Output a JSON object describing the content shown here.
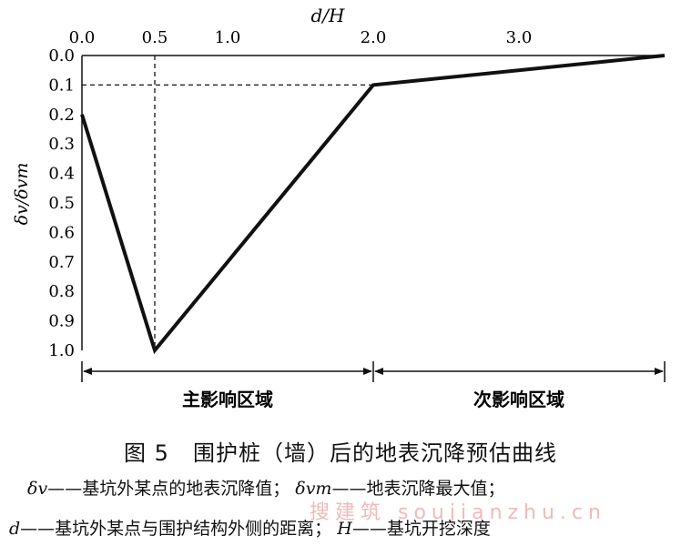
{
  "chart_data": {
    "type": "line",
    "x_axis": {
      "label": "d/H",
      "position": "top",
      "range": [
        0,
        4.0
      ],
      "tick_values": [
        0,
        0.5,
        1.0,
        2.0,
        3.0
      ],
      "tick_labels": [
        "0.0",
        "0.5",
        "1.0",
        "2.0",
        "3.0"
      ]
    },
    "y_axis": {
      "label": "δv/δvm",
      "inverted": true,
      "range": [
        0,
        1.0
      ],
      "tick_values": [
        0,
        0.1,
        0.2,
        0.3,
        0.4,
        0.5,
        0.6,
        0.7,
        0.8,
        0.9,
        1.0
      ],
      "tick_labels": [
        "0.0",
        "0.1",
        "0.2",
        "0.3",
        "0.4",
        "0.5",
        "0.6",
        "0.7",
        "0.8",
        "0.9",
        "1.0"
      ]
    },
    "series": [
      {
        "x": [
          0,
          0.5,
          2.0,
          4.0
        ],
        "y": [
          0.2,
          1.0,
          0.1,
          0.0
        ]
      }
    ],
    "guides": [
      {
        "type": "vertical",
        "x": 0.5,
        "style": "dashed"
      },
      {
        "type": "horizontal",
        "y": 0.1,
        "style": "dashed"
      }
    ],
    "zones": [
      {
        "label": "主影响区域",
        "x_from": 0,
        "x_to": 2.0
      },
      {
        "label": "次影响区域",
        "x_from": 2.0,
        "x_to": 4.0
      }
    ],
    "grid": false
  },
  "caption": {
    "number": "图 5",
    "title": "围护桩（墙）后的地表沉降预估曲线"
  },
  "legend_notes": {
    "line1": {
      "sym1": "δv",
      "desc1": "——基坑外某点的地表沉降值；",
      "sym2": "δvm",
      "desc2": "——地表沉降最大值；"
    },
    "line2": {
      "sym1": "d",
      "desc1": "——基坑外某点与围护结构外侧的距离；",
      "sym2": "H",
      "desc2": "——基坑开挖深度"
    }
  },
  "watermark": "搜建筑 soujianzhu.cn"
}
